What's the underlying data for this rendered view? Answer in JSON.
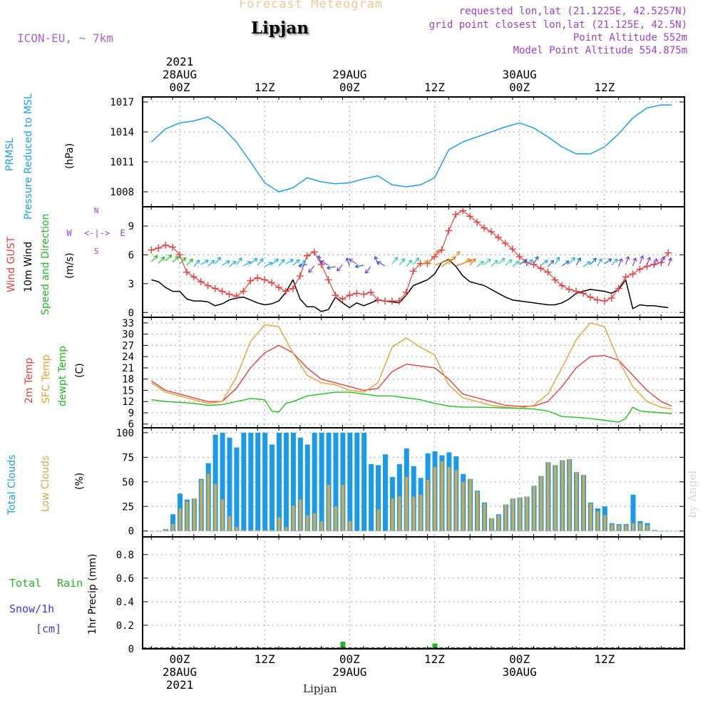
{
  "header": {
    "title": "Forecast Meteogram",
    "location": "Lipjan",
    "model": "ICON-EU, ~ 7km",
    "requested": "requested lon,lat (21.1225E, 42.5257N)",
    "grid_point": "grid point closest lon,lat (21.125E, 42.5N)",
    "point_altitude": "Point Altitude 552m",
    "model_altitude": "Model Point Altitude 554.875m",
    "credit": "by Angel"
  },
  "time_axis": {
    "top_year": "2021",
    "ticks": [
      "00Z",
      "12Z",
      "00Z",
      "12Z",
      "00Z",
      "12Z"
    ],
    "dates": [
      "28AUG",
      "29AUG",
      "30AUG"
    ],
    "bottom_year": "2021"
  },
  "labels": {
    "pressure": [
      "PRMSL",
      "Pressure Reduced to MSL",
      "(hPa)"
    ],
    "wind": [
      "Wind GUST",
      "10m Wind",
      "Speed and Direction",
      "(m/s)"
    ],
    "compass": {
      "n": "N",
      "s": "S",
      "w": "W",
      "e": "E",
      "mid": "<-|->"
    },
    "temp": [
      "2m Temp",
      "SFC Temp",
      "dewpt Temp",
      "(C)"
    ],
    "cloud": [
      "Total Clouds",
      "Low Clouds",
      "(%)"
    ],
    "precip": [
      "1hr Precip (mm)"
    ],
    "precip_legend": [
      "Total",
      "Rain",
      "Snow/1h",
      "[cm]"
    ],
    "bottom_location": "Lipjan"
  },
  "colors": {
    "pressure": "#1ea0e8",
    "gust": "#e84040",
    "wind": "#000000",
    "temp2m": "#e04040",
    "sfc": "#e8a030",
    "dewpt": "#22c022",
    "total_cloud": "#1a9ae8",
    "low_cloud": "#d0a850",
    "precip": "#22b822",
    "snow": "#3a3ad8",
    "compass": "#a040d8"
  },
  "chart_data": [
    {
      "type": "line",
      "title": "PRMSL Pressure Reduced to MSL",
      "ylabel": "(hPa)",
      "ylim": [
        1006.5,
        1017.5
      ],
      "yticks": [
        1008,
        1011,
        1014,
        1017
      ],
      "series": [
        {
          "name": "PRMSL",
          "x": [
            -4,
            -2,
            0,
            2,
            4,
            6,
            8,
            10,
            12,
            14,
            16,
            18,
            20,
            22,
            24,
            26,
            28,
            30,
            32,
            34,
            36,
            38,
            40,
            42,
            44,
            46,
            48,
            50,
            52,
            54,
            56,
            58,
            60,
            62,
            64,
            66,
            68,
            69.5
          ],
          "values": [
            1013.0,
            1014.3,
            1014.9,
            1015.1,
            1015.5,
            1014.5,
            1013.0,
            1011.0,
            1008.9,
            1008.0,
            1008.4,
            1009.4,
            1009.0,
            1008.8,
            1008.9,
            1009.3,
            1009.6,
            1008.7,
            1008.5,
            1008.7,
            1009.4,
            1012.2,
            1013.0,
            1013.5,
            1014.0,
            1014.5,
            1014.9,
            1014.4,
            1013.5,
            1012.5,
            1011.8,
            1011.8,
            1012.5,
            1013.8,
            1015.4,
            1016.4,
            1016.7,
            1016.7
          ]
        }
      ]
    },
    {
      "type": "line",
      "title": "Wind GUST / 10m Wind Speed and Direction",
      "ylabel": "(m/s)",
      "ylim": [
        -0.5,
        11
      ],
      "yticks": [
        0,
        3,
        6,
        9
      ],
      "x": [
        -4,
        -3,
        -2,
        -1,
        0,
        1,
        2,
        3,
        4,
        5,
        6,
        7,
        8,
        9,
        10,
        11,
        12,
        13,
        14,
        15,
        16,
        17,
        18,
        19,
        20,
        21,
        22,
        23,
        24,
        25,
        26,
        27,
        28,
        29,
        30,
        31,
        32,
        33,
        34,
        35,
        36,
        37,
        38,
        39,
        40,
        41,
        42,
        43,
        44,
        45,
        46,
        47,
        48,
        49,
        50,
        51,
        52,
        53,
        54,
        55,
        56,
        57,
        58,
        59,
        60,
        61,
        62,
        63,
        64,
        65,
        66,
        67,
        68,
        69
      ],
      "series": [
        {
          "name": "Wind GUST",
          "values": [
            6.5,
            6.7,
            7.0,
            6.8,
            6.0,
            4.2,
            3.7,
            3.2,
            2.8,
            2.5,
            2.2,
            1.9,
            1.7,
            2.2,
            3.3,
            3.6,
            3.4,
            3.1,
            2.6,
            2.2,
            2.5,
            3.8,
            5.9,
            6.3,
            5.0,
            3.4,
            1.8,
            1.4,
            1.8,
            2.0,
            1.9,
            2.1,
            1.3,
            1.2,
            1.2,
            1.2,
            2.1,
            4.3,
            5.1,
            5.1,
            5.8,
            6.5,
            8.5,
            10.2,
            10.6,
            10.0,
            9.4,
            8.8,
            8.4,
            7.8,
            7.2,
            6.6,
            5.8,
            5.2,
            5.0,
            4.6,
            4.2,
            3.4,
            2.8,
            2.4,
            2.2,
            2.0,
            1.6,
            1.3,
            1.2,
            1.5,
            2.5,
            3.7,
            4.0,
            4.5,
            4.8,
            5.0,
            5.2,
            6.2
          ]
        },
        {
          "name": "10m Wind",
          "values": [
            3.4,
            3.2,
            2.6,
            2.2,
            2.2,
            1.4,
            1.2,
            1.2,
            1.1,
            0.7,
            0.9,
            1.3,
            1.5,
            1.6,
            1.3,
            1.0,
            0.8,
            0.9,
            1.2,
            2.1,
            3.4,
            1.4,
            0.6,
            0.6,
            0.1,
            0.3,
            1.6,
            1.0,
            0.5,
            1.0,
            0.7,
            1.0,
            1.3,
            1.2,
            1.1,
            1.0,
            1.8,
            2.8,
            3.1,
            3.4,
            4.0,
            5.2,
            5.5,
            4.8,
            3.8,
            3.2,
            3.0,
            2.8,
            2.4,
            2.0,
            1.6,
            1.3,
            1.2,
            1.1,
            1.0,
            0.9,
            0.8,
            0.8,
            1.0,
            1.4,
            2.0,
            2.2,
            2.4,
            2.3,
            2.2,
            2.0,
            2.4,
            3.4,
            0.4,
            0.8,
            0.7,
            0.7,
            0.6,
            0.5
          ]
        }
      ]
    },
    {
      "type": "line",
      "title": "2m Temp / SFC Temp / dewpt Temp",
      "ylabel": "(C)",
      "ylim": [
        5,
        34.5
      ],
      "yticks": [
        6,
        9,
        12,
        15,
        18,
        21,
        24,
        27,
        30,
        33
      ],
      "series": [
        {
          "name": "2m Temp",
          "x": [
            -4,
            -2,
            0,
            2,
            4,
            6,
            8,
            10,
            12,
            14,
            16,
            18,
            20,
            22,
            24,
            26,
            28,
            30,
            32,
            34,
            36,
            38,
            40,
            42,
            44,
            46,
            48,
            50,
            52,
            54,
            56,
            58,
            60,
            62,
            64,
            66,
            68,
            69.5
          ],
          "values": [
            17.5,
            15.0,
            14.0,
            13.0,
            12.0,
            12.0,
            15.5,
            21.0,
            25.0,
            27.0,
            25.0,
            21.0,
            18.0,
            17.0,
            16.0,
            15.0,
            15.5,
            20.0,
            22.0,
            21.5,
            21.0,
            18.0,
            14.0,
            13.0,
            12.0,
            11.0,
            10.7,
            10.8,
            12.0,
            16.0,
            21.0,
            24.0,
            24.3,
            23.0,
            19.0,
            15.0,
            12.0,
            10.8
          ]
        },
        {
          "name": "SFC Temp",
          "x": [
            -4,
            -2,
            0,
            2,
            4,
            6,
            8,
            10,
            12,
            14,
            16,
            18,
            20,
            22,
            24,
            26,
            28,
            30,
            32,
            34,
            36,
            38,
            40,
            42,
            44,
            46,
            48,
            50,
            52,
            54,
            56,
            58,
            60,
            62,
            64,
            66,
            68,
            69.5
          ],
          "values": [
            17.0,
            14.5,
            13.5,
            12.5,
            11.5,
            12.0,
            18.5,
            28.0,
            32.5,
            32.0,
            25.0,
            19.0,
            17.0,
            16.5,
            15.0,
            14.5,
            17.0,
            26.5,
            29.0,
            26.5,
            24.5,
            16.5,
            13.0,
            12.0,
            11.0,
            10.5,
            10.2,
            11.0,
            14.0,
            21.0,
            28.5,
            33.0,
            32.0,
            23.0,
            16.0,
            12.0,
            10.5,
            10.0
          ]
        },
        {
          "name": "dewpt Temp",
          "x": [
            -4,
            -2,
            0,
            2,
            4,
            6,
            8,
            10,
            12,
            13,
            14,
            15,
            16,
            18,
            20,
            22,
            24,
            26,
            28,
            30,
            32,
            34,
            36,
            38,
            40,
            42,
            44,
            46,
            48,
            50,
            52,
            54,
            56,
            58,
            60,
            62,
            63,
            64,
            65,
            66,
            68,
            69.5
          ],
          "values": [
            12.5,
            12.0,
            11.8,
            11.5,
            11.0,
            11.2,
            12.0,
            12.8,
            12.5,
            9.5,
            9.2,
            11.5,
            12.0,
            13.5,
            14.0,
            14.5,
            14.5,
            14.0,
            13.5,
            13.5,
            13.0,
            12.5,
            11.5,
            10.8,
            10.5,
            10.5,
            10.4,
            10.3,
            10.2,
            10.0,
            9.5,
            8.0,
            7.8,
            7.5,
            7.0,
            6.5,
            7.5,
            10.5,
            9.5,
            9.3,
            9.0,
            8.8
          ]
        }
      ]
    },
    {
      "type": "bar",
      "title": "Total Clouds / Low Clouds",
      "ylabel": "(%)",
      "ylim": [
        -6,
        105
      ],
      "yticks": [
        0,
        25,
        50,
        75,
        100
      ],
      "x": [
        -4,
        -3,
        -2,
        -1,
        0,
        1,
        2,
        3,
        4,
        5,
        6,
        7,
        8,
        9,
        10,
        11,
        12,
        13,
        14,
        15,
        16,
        17,
        18,
        19,
        20,
        21,
        22,
        23,
        24,
        25,
        26,
        27,
        28,
        29,
        30,
        31,
        32,
        33,
        34,
        35,
        36,
        37,
        38,
        39,
        40,
        41,
        42,
        43,
        44,
        45,
        46,
        47,
        48,
        49,
        50,
        51,
        52,
        53,
        54,
        55,
        56,
        57,
        58,
        59,
        60,
        61,
        62,
        63,
        64,
        65,
        66,
        67,
        68,
        69
      ],
      "series": [
        {
          "name": "Total Clouds",
          "values": [
            0,
            0,
            2,
            17,
            38,
            32,
            33,
            53,
            69,
            98,
            100,
            95,
            85,
            100,
            100,
            100,
            100,
            88,
            100,
            100,
            100,
            95,
            88,
            100,
            100,
            100,
            100,
            100,
            100,
            100,
            100,
            68,
            67,
            78,
            55,
            68,
            84,
            66,
            54,
            79,
            81,
            77,
            80,
            76,
            58,
            53,
            41,
            29,
            13,
            17,
            27,
            33,
            34,
            35,
            46,
            56,
            70,
            67,
            72,
            73,
            60,
            57,
            29,
            23,
            25,
            8,
            7,
            7,
            37,
            10,
            8,
            1,
            0,
            0
          ]
        },
        {
          "name": "Low Clouds",
          "values": [
            0,
            0,
            2,
            7,
            23,
            30,
            33,
            52,
            58,
            48,
            32,
            15,
            4,
            1,
            1,
            1,
            1,
            1,
            14,
            4,
            26,
            32,
            16,
            18,
            10,
            47,
            25,
            47,
            10,
            0,
            0,
            0,
            22,
            0,
            33,
            35,
            55,
            35,
            37,
            52,
            65,
            71,
            65,
            62,
            50,
            53,
            40,
            28,
            13,
            16,
            27,
            33,
            34,
            35,
            46,
            56,
            70,
            67,
            72,
            73,
            60,
            57,
            28,
            20,
            16,
            7,
            6,
            6,
            8,
            8,
            6,
            1,
            0,
            0
          ]
        }
      ]
    },
    {
      "type": "bar",
      "title": "1hr Precip",
      "ylabel": "1hr Precip (mm)",
      "ylim": [
        0,
        0.95
      ],
      "yticks": [
        0,
        0.2,
        0.4,
        0.6,
        0.8
      ],
      "series": [
        {
          "name": "Total Rain",
          "x": [
            10,
            14,
            18,
            19,
            21,
            23,
            32,
            34,
            36
          ],
          "values": [
            0.002,
            0.005,
            0.004,
            0.002,
            0.003,
            0.06,
            0.003,
            0.004,
            0.045
          ]
        },
        {
          "name": "Snow/1h",
          "x": [],
          "values": []
        }
      ]
    }
  ]
}
